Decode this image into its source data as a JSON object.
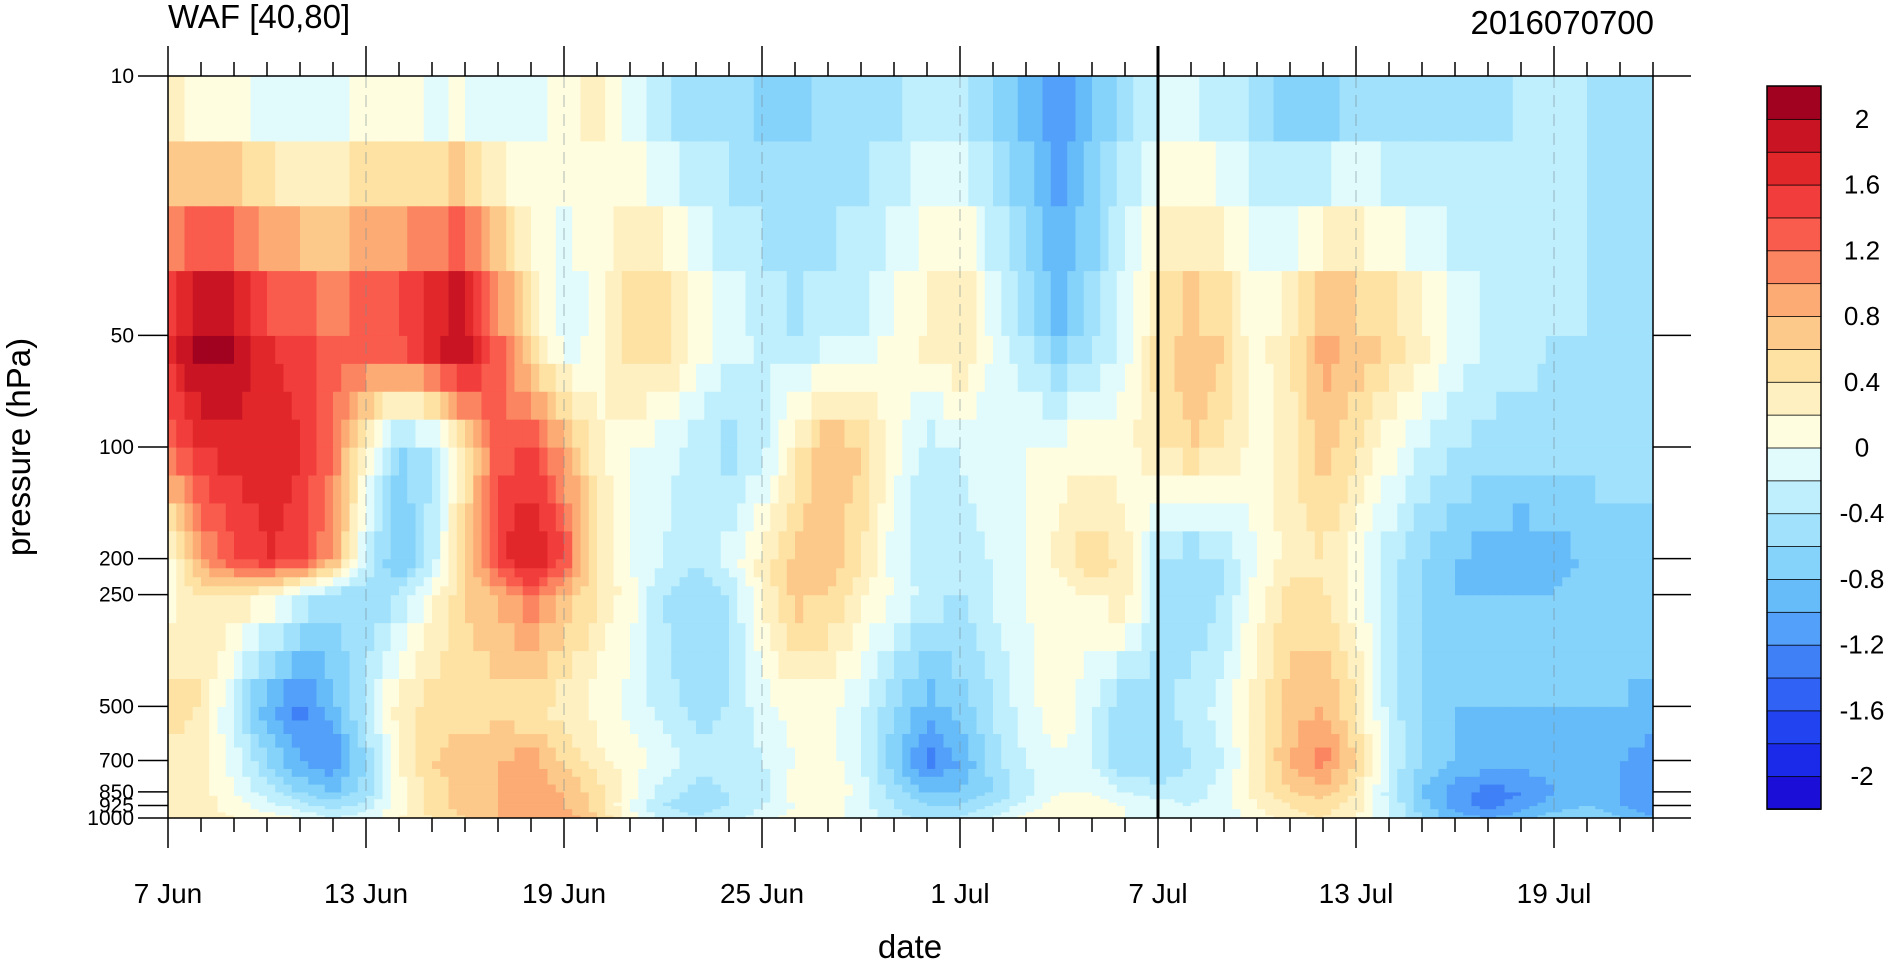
{
  "chart_data": {
    "type": "heatmap",
    "title": "WAF [40,80]",
    "subtitle": "2016070700",
    "xlabel": "date",
    "ylabel": "pressure (hPa)",
    "x_tick_labels": [
      "7 Jun",
      "13 Jun",
      "19 Jun",
      "25 Jun",
      "1 Jul",
      "7 Jul",
      "13 Jul",
      "19 Jul"
    ],
    "x": [
      "6/7",
      "6/8",
      "6/9",
      "6/10",
      "6/11",
      "6/12",
      "6/13",
      "6/14",
      "6/15",
      "6/16",
      "6/17",
      "6/18",
      "6/19",
      "6/20",
      "6/21",
      "6/22",
      "6/23",
      "6/24",
      "6/25",
      "6/26",
      "6/27",
      "6/28",
      "6/29",
      "6/30",
      "7/1",
      "7/2",
      "7/3",
      "7/4",
      "7/5",
      "7/6",
      "7/7",
      "7/8",
      "7/9",
      "7/10",
      "7/11",
      "7/12",
      "7/13",
      "7/14",
      "7/15",
      "7/16",
      "7/17",
      "7/18",
      "7/19",
      "7/20",
      "7/21",
      "7/22"
    ],
    "y_levels": [
      1000,
      925,
      850,
      700,
      500,
      250,
      200,
      100,
      50,
      10
    ],
    "y_tick_labels": [
      "10",
      "50",
      "100",
      "200",
      "250",
      "500",
      "700",
      "850",
      "925",
      "1000"
    ],
    "y_scale": "log",
    "ylim": [
      1000,
      10
    ],
    "marked_date": "7 Jul",
    "colorbar": {
      "levels": [
        -2.2,
        -2.0,
        -1.8,
        -1.6,
        -1.4,
        -1.2,
        -1.0,
        -0.8,
        -0.6,
        -0.4,
        -0.2,
        0.0,
        0.2,
        0.4,
        0.6,
        0.8,
        1.0,
        1.2,
        1.4,
        1.6,
        1.8,
        2.0,
        2.2
      ],
      "labels": [
        "-2",
        "-1.6",
        "-1.2",
        "-0.8",
        "-0.4",
        "0",
        "0.4",
        "0.8",
        "1.2",
        "1.6",
        "2"
      ],
      "colors": [
        "#1b0ed6",
        "#1a2ae8",
        "#2244f0",
        "#2f62f5",
        "#3f80f7",
        "#52a0f9",
        "#66bcf8",
        "#85d2fa",
        "#a1e1fb",
        "#bfeffc",
        "#e1fbfc",
        "#fffde0",
        "#fff0c2",
        "#fde2a4",
        "#fcc98a",
        "#fcab74",
        "#fb8560",
        "#f95b4d",
        "#f13e3c",
        "#e2272b",
        "#c91424",
        "#a1021f"
      ],
      "placement": "right"
    },
    "z": [
      [
        0.4,
        0.3,
        0.2,
        0.1,
        0.0,
        -0.2,
        -0.1,
        0.2,
        0.4,
        0.6,
        0.8,
        1.0,
        1.0,
        0.6,
        0.1,
        -0.3,
        -0.4,
        -0.3,
        -0.1,
        0.1,
        0.1,
        -0.1,
        -0.3,
        -0.5,
        -0.4,
        -0.2,
        0.1,
        0.2,
        0.1,
        0.0,
        -0.1,
        -0.2,
        -0.1,
        0.1,
        0.3,
        0.4,
        0.2,
        -0.2,
        -0.6,
        -0.9,
        -1.0,
        -0.9,
        -0.7,
        -0.6,
        -0.8,
        -1.0
      ],
      [
        0.4,
        0.3,
        0.1,
        -0.1,
        -0.3,
        -0.5,
        -0.3,
        0.1,
        0.5,
        0.7,
        0.8,
        0.9,
        0.8,
        0.5,
        0.0,
        -0.4,
        -0.5,
        -0.4,
        -0.2,
        0.0,
        0.1,
        -0.1,
        -0.4,
        -0.6,
        -0.6,
        -0.4,
        -0.1,
        0.1,
        0.1,
        0.0,
        -0.1,
        -0.2,
        -0.1,
        0.2,
        0.4,
        0.5,
        0.3,
        -0.2,
        -0.7,
        -1.1,
        -1.3,
        -1.1,
        -0.9,
        -0.8,
        -1.0,
        -1.2
      ],
      [
        0.4,
        0.3,
        0.0,
        -0.3,
        -0.6,
        -0.8,
        -0.5,
        0.1,
        0.5,
        0.7,
        0.8,
        0.9,
        0.8,
        0.5,
        0.1,
        -0.3,
        -0.5,
        -0.4,
        -0.3,
        0.1,
        0.2,
        -0.1,
        -0.5,
        -0.8,
        -0.8,
        -0.6,
        -0.3,
        0.0,
        0.0,
        -0.2,
        -0.3,
        -0.3,
        -0.1,
        0.3,
        0.6,
        0.7,
        0.4,
        -0.3,
        -0.8,
        -1.1,
        -1.3,
        -1.2,
        -1.0,
        -0.9,
        -1.0,
        -1.2
      ],
      [
        0.3,
        0.3,
        -0.1,
        -0.6,
        -1.0,
        -1.2,
        -0.6,
        0.2,
        0.6,
        0.7,
        0.8,
        0.9,
        0.6,
        0.3,
        0.1,
        -0.1,
        -0.3,
        -0.3,
        -0.2,
        0.0,
        0.1,
        -0.2,
        -0.7,
        -1.3,
        -1.0,
        -0.5,
        -0.2,
        0.0,
        -0.2,
        -0.6,
        -0.6,
        -0.4,
        -0.2,
        0.3,
        0.8,
        1.1,
        0.6,
        -0.2,
        -0.6,
        -0.8,
        -0.9,
        -0.9,
        -0.9,
        -0.9,
        -1.0,
        -1.1
      ],
      [
        0.5,
        0.4,
        -0.3,
        -1.0,
        -1.3,
        -0.9,
        -0.3,
        0.3,
        0.5,
        0.5,
        0.5,
        0.4,
        0.3,
        0.1,
        -0.1,
        -0.3,
        -0.5,
        -0.4,
        -0.1,
        0.1,
        0.1,
        -0.2,
        -0.6,
        -0.9,
        -0.7,
        -0.4,
        -0.1,
        0.2,
        -0.2,
        -0.6,
        -0.5,
        -0.3,
        -0.1,
        0.3,
        0.7,
        0.8,
        0.4,
        -0.3,
        -0.6,
        -0.8,
        -0.8,
        -0.8,
        -0.8,
        -0.8,
        -0.8,
        -0.9
      ],
      [
        0.1,
        0.4,
        0.4,
        0.2,
        -0.2,
        -0.5,
        -0.6,
        -0.4,
        0.1,
        0.6,
        0.8,
        1.2,
        0.8,
        0.4,
        0.1,
        -0.4,
        -0.6,
        -0.4,
        0.2,
        0.7,
        0.6,
        0.3,
        0.0,
        -0.3,
        -0.4,
        -0.2,
        0.0,
        0.1,
        0.2,
        0.4,
        -0.4,
        -0.6,
        -0.4,
        0.1,
        0.5,
        0.4,
        0.1,
        -0.3,
        -0.6,
        -0.8,
        -0.8,
        -0.8,
        -0.8,
        -0.7,
        -0.6,
        -0.6
      ],
      [
        0.1,
        0.9,
        1.4,
        1.6,
        1.5,
        0.9,
        -0.2,
        -0.9,
        -0.3,
        0.6,
        1.5,
        1.9,
        1.4,
        0.4,
        0.0,
        -0.2,
        -0.4,
        -0.1,
        0.3,
        0.7,
        0.8,
        0.4,
        -0.1,
        -0.4,
        -0.3,
        -0.2,
        0.0,
        0.3,
        0.6,
        0.3,
        -0.4,
        -0.6,
        -0.4,
        0.0,
        0.3,
        0.4,
        0.1,
        -0.3,
        -0.6,
        -0.8,
        -0.9,
        -1.0,
        -0.9,
        -0.8,
        -0.7,
        -0.7
      ],
      [
        1.2,
        1.6,
        1.7,
        1.7,
        1.6,
        1.2,
        0.2,
        -0.6,
        -0.4,
        0.4,
        1.3,
        1.4,
        0.9,
        0.3,
        0.0,
        -0.1,
        -0.3,
        -0.5,
        -0.3,
        0.3,
        0.8,
        0.6,
        0.1,
        -0.3,
        -0.2,
        -0.1,
        0.0,
        0.1,
        0.1,
        0.1,
        0.4,
        0.6,
        0.4,
        0.1,
        0.3,
        0.7,
        0.4,
        0.1,
        -0.2,
        -0.4,
        -0.5,
        -0.5,
        -0.5,
        -0.5,
        -0.5,
        -0.5
      ],
      [
        1.7,
        2.2,
        2.1,
        1.6,
        1.5,
        1.3,
        1.5,
        1.6,
        2.0,
        2.2,
        1.3,
        0.4,
        -0.2,
        0.0,
        0.6,
        0.6,
        0.2,
        -0.1,
        -0.2,
        -0.4,
        -0.3,
        -0.2,
        0.1,
        0.3,
        0.5,
        0.0,
        -0.4,
        -0.8,
        -0.5,
        -0.1,
        0.5,
        0.8,
        0.6,
        0.1,
        0.4,
        0.9,
        0.8,
        0.6,
        0.3,
        0.0,
        -0.2,
        -0.3,
        -0.4,
        -0.4,
        -0.5,
        -0.5
      ],
      [
        0.0,
        -0.1,
        -0.2,
        -0.3,
        -0.4,
        -0.3,
        -0.1,
        -0.2,
        -0.3,
        -0.3,
        -0.4,
        -0.2,
        0.2,
        0.3,
        -0.2,
        -0.5,
        -0.6,
        -0.6,
        -0.7,
        -0.7,
        -0.6,
        -0.6,
        -0.5,
        -0.4,
        -0.4,
        -0.7,
        -0.9,
        -1.3,
        -0.9,
        -0.5,
        -0.3,
        -0.3,
        -0.4,
        -0.5,
        -0.9,
        -0.9,
        -0.7,
        -0.7,
        -0.7,
        -0.6,
        -0.5,
        -0.4,
        -0.4,
        -0.4,
        -0.4,
        -0.4
      ]
    ]
  }
}
